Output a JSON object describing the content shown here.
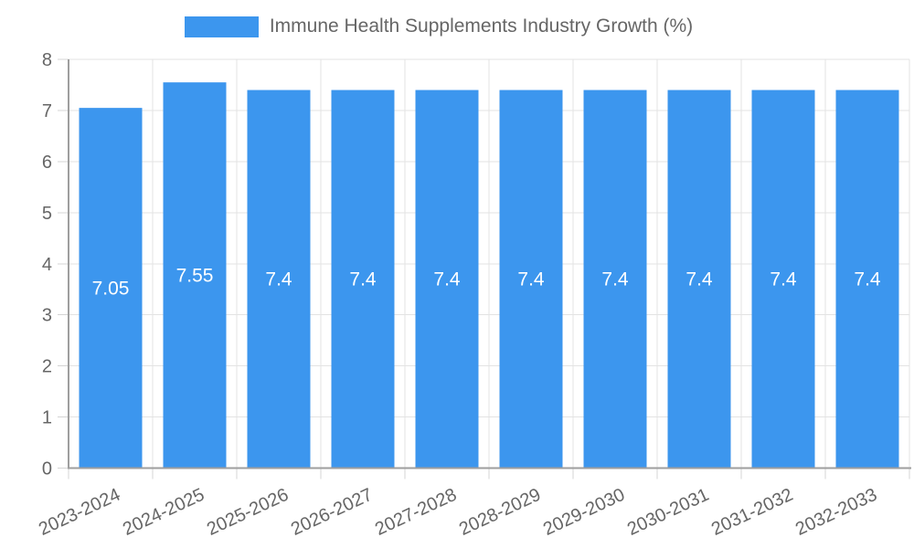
{
  "legend": {
    "label": "Immune Health Supplements Industry Growth (%)",
    "swatch_color": "#3c96ee"
  },
  "chart_data": {
    "type": "bar",
    "title": "Immune Health Supplements Industry Growth (%)",
    "categories": [
      "2023-2024",
      "2024-2025",
      "2025-2026",
      "2026-2027",
      "2027-2028",
      "2028-2029",
      "2029-2030",
      "2030-2031",
      "2031-2032",
      "2032-2033"
    ],
    "values": [
      7.05,
      7.55,
      7.4,
      7.4,
      7.4,
      7.4,
      7.4,
      7.4,
      7.4,
      7.4
    ],
    "bar_labels": [
      "7.05",
      "7.55",
      "7.4",
      "7.4",
      "7.4",
      "7.4",
      "7.4",
      "7.4",
      "7.4",
      "7.4"
    ],
    "xlabel": "",
    "ylabel": "",
    "ylim": [
      0,
      8
    ],
    "yticks": [
      0,
      1,
      2,
      3,
      4,
      5,
      6,
      7,
      8
    ],
    "grid": true,
    "legend_position": "top",
    "x_label_rotation": -25,
    "bar_color": "#3c96ee",
    "bar_label_color": "#ffffff",
    "grid_color": "#e3e3e3",
    "tick_mark_color": "#d4d4d4",
    "axis_color": "#9e9e9e",
    "tick_text_color": "#666666"
  }
}
